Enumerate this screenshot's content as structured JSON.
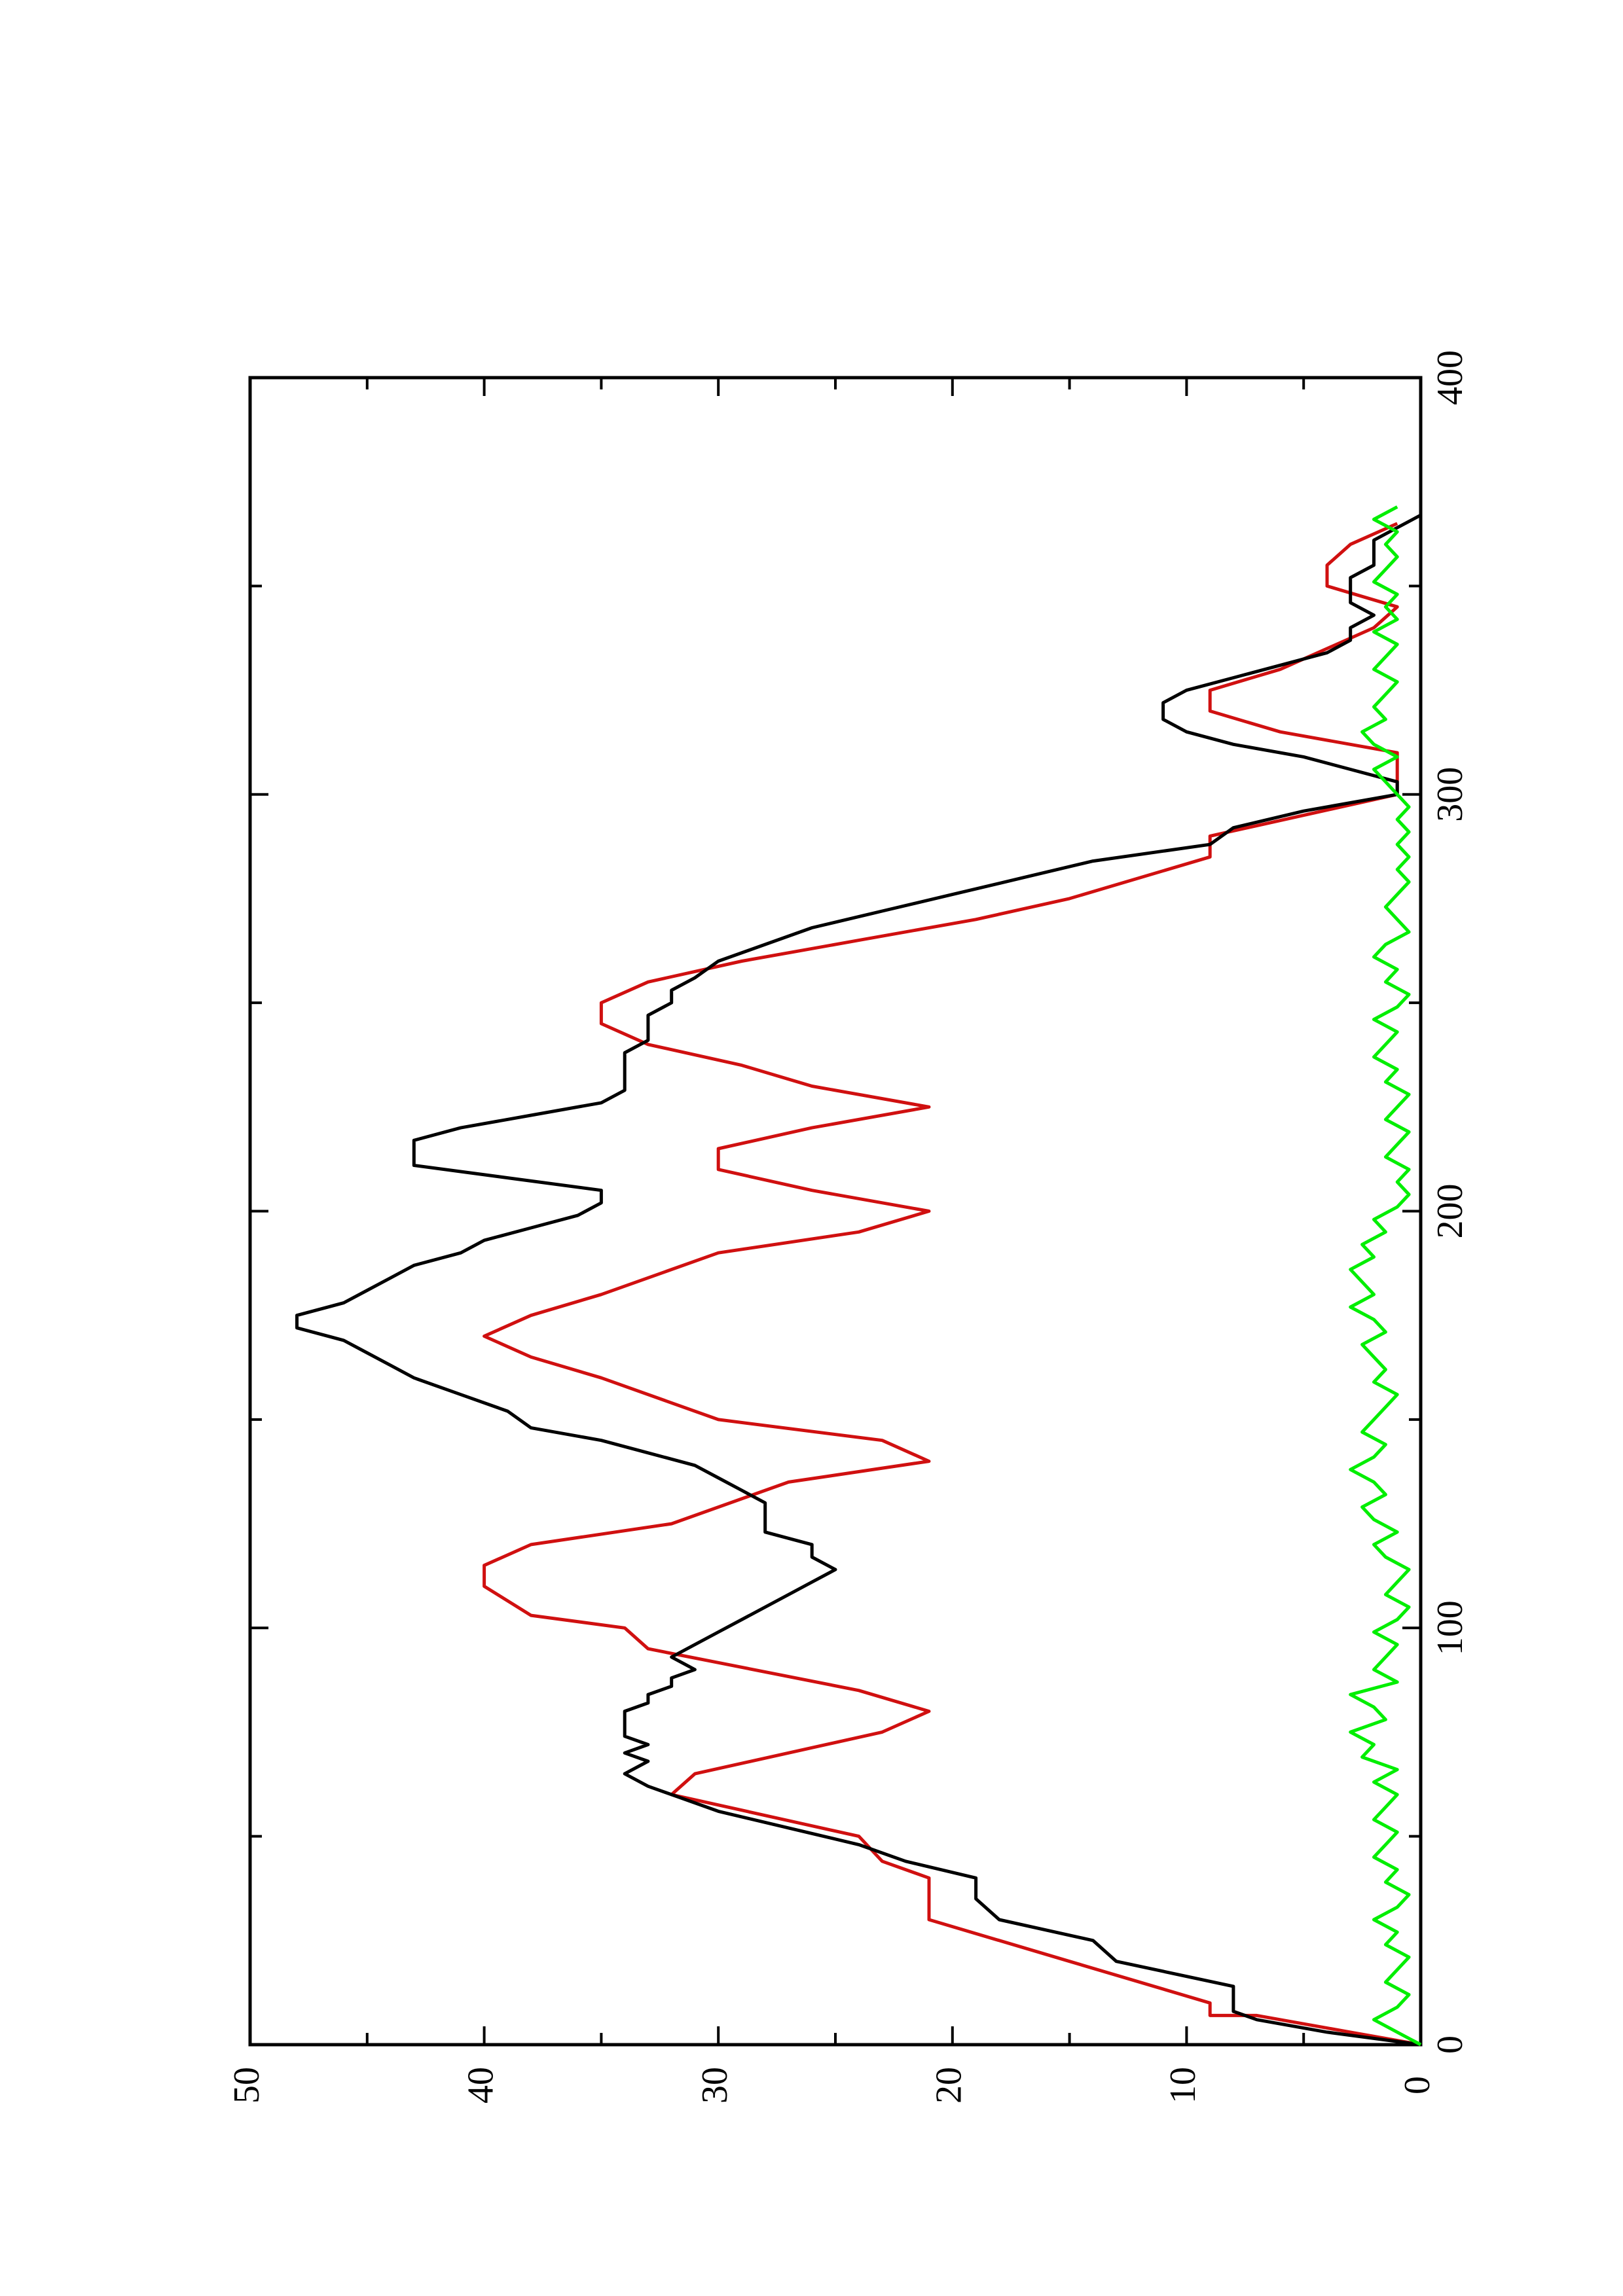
{
  "chart_data": {
    "type": "line",
    "orientation": "rotated-90-ccw",
    "title": "",
    "xlabel": "",
    "ylabel": "",
    "xlim": [
      0,
      400
    ],
    "ylim": [
      0,
      50
    ],
    "x_ticks": [
      0,
      100,
      200,
      300,
      400
    ],
    "y_ticks": [
      0,
      10,
      20,
      30,
      40,
      50
    ],
    "x_minor_ticks": [
      50,
      150,
      250,
      350
    ],
    "y_minor_ticks": [
      5,
      15,
      25,
      35,
      45
    ],
    "grid": false,
    "legend": "none",
    "series": [
      {
        "color": "#d01010",
        "x": [
          0,
          3,
          7,
          7,
          10,
          20,
          20,
          30,
          30,
          40,
          44,
          50,
          60,
          65,
          75,
          80,
          80,
          85,
          95,
          100,
          103,
          110,
          115,
          120,
          125,
          135,
          140,
          145,
          150,
          160,
          165,
          170,
          175,
          180,
          190,
          195,
          200,
          205,
          210,
          215,
          220,
          225,
          225,
          230,
          235,
          240,
          245,
          250,
          255,
          260,
          265,
          270,
          275,
          285,
          290,
          300,
          305,
          310,
          315,
          320,
          325,
          330,
          335,
          340,
          345,
          350,
          355,
          360,
          365
        ],
        "y": [
          0,
          3,
          7,
          9,
          9,
          15,
          15,
          21,
          21,
          21,
          23,
          24,
          32,
          31,
          23,
          21,
          21,
          24,
          33,
          34,
          38,
          40,
          40,
          38,
          32,
          27,
          21,
          23,
          30,
          35,
          38,
          40,
          38,
          35,
          30,
          24,
          21,
          26,
          30,
          30,
          26,
          21,
          21,
          26,
          29,
          33,
          35,
          35,
          33,
          29,
          24,
          19,
          15,
          9,
          9,
          1,
          1,
          1,
          6,
          9,
          9,
          6,
          4,
          2,
          1,
          4,
          4,
          3,
          1
        ]
      },
      {
        "color": "#000000",
        "x": [
          0,
          3,
          6,
          8,
          10,
          14,
          20,
          25,
          30,
          35,
          40,
          44,
          48,
          52,
          56,
          60,
          62,
          65,
          68,
          70,
          72,
          74,
          76,
          78,
          80,
          82,
          84,
          86,
          88,
          90,
          93,
          96,
          99,
          102,
          105,
          108,
          111,
          114,
          117,
          120,
          123,
          126,
          128,
          130,
          133,
          136,
          139,
          142,
          145,
          148,
          152,
          156,
          160,
          163,
          166,
          169,
          172,
          175,
          178,
          181,
          184,
          187,
          190,
          193,
          196,
          199,
          202,
          205,
          208,
          211,
          214,
          217,
          220,
          223,
          226,
          229,
          232,
          235,
          238,
          241,
          244,
          247,
          250,
          253,
          256,
          260,
          264,
          268,
          272,
          276,
          280,
          284,
          288,
          292,
          296,
          300,
          303,
          306,
          309,
          312,
          315,
          318,
          320,
          322,
          325,
          328,
          331,
          334,
          337,
          340,
          343,
          346,
          349,
          352,
          355,
          358,
          361,
          364,
          367
        ],
        "y": [
          0,
          4,
          7,
          8,
          8,
          8,
          13,
          14,
          18,
          19,
          19,
          22,
          24,
          27,
          30,
          32,
          33,
          34,
          33,
          34,
          33,
          34,
          34,
          34,
          34,
          33,
          33,
          32,
          32,
          31,
          32,
          31,
          30,
          29,
          28,
          27,
          26,
          25,
          26,
          26,
          28,
          28,
          28,
          28,
          29,
          30,
          31,
          33,
          35,
          38,
          39,
          41,
          43,
          44,
          45,
          46,
          48,
          48,
          46,
          45,
          44,
          43,
          41,
          40,
          38,
          36,
          35,
          35,
          39,
          43,
          43,
          43,
          41,
          38,
          35,
          34,
          34,
          34,
          34,
          33,
          33,
          33,
          32,
          32,
          31,
          30,
          28,
          26,
          23,
          20,
          17,
          14,
          9,
          8,
          5,
          1,
          1,
          3,
          5,
          8,
          10,
          11,
          11,
          11,
          10,
          8,
          6,
          4,
          3,
          3,
          2,
          3,
          3,
          3,
          2,
          2,
          2,
          1,
          0
        ]
      },
      {
        "color": "#00ee00",
        "x": [
          0,
          3,
          6,
          9,
          12,
          15,
          18,
          21,
          24,
          27,
          30,
          33,
          36,
          39,
          42,
          45,
          48,
          51,
          54,
          57,
          60,
          63,
          66,
          69,
          72,
          75,
          78,
          81,
          84,
          87,
          90,
          93,
          96,
          99,
          102,
          105,
          108,
          111,
          114,
          117,
          120,
          123,
          126,
          129,
          132,
          135,
          138,
          141,
          144,
          147,
          150,
          153,
          156,
          159,
          162,
          165,
          168,
          171,
          174,
          177,
          180,
          183,
          186,
          189,
          192,
          195,
          198,
          201,
          204,
          207,
          210,
          213,
          216,
          219,
          222,
          225,
          228,
          231,
          234,
          237,
          240,
          243,
          246,
          249,
          252,
          255,
          258,
          261,
          264,
          267,
          270,
          273,
          276,
          279,
          282,
          285,
          288,
          291,
          294,
          297,
          300,
          303,
          306,
          309,
          312,
          315,
          318,
          321,
          324,
          327,
          330,
          333,
          336,
          339,
          342,
          345,
          348,
          351,
          354,
          357,
          360,
          363,
          366,
          369
        ],
        "y": [
          0,
          1,
          2,
          1,
          0.5,
          1.5,
          1,
          0.5,
          1.5,
          1,
          2,
          1,
          0.5,
          1.5,
          1,
          2,
          1.5,
          1,
          2,
          1.5,
          1,
          2,
          1,
          2.5,
          2,
          3,
          1.5,
          2,
          3,
          1,
          2,
          1.5,
          1,
          2,
          1,
          0.5,
          1.5,
          1,
          0.5,
          1.5,
          2,
          1,
          2,
          2.5,
          1.5,
          2,
          3,
          2,
          1.5,
          2.5,
          2,
          1.5,
          1,
          2,
          1.5,
          2,
          2.5,
          1.5,
          2,
          3,
          2,
          2.5,
          3,
          2,
          2.5,
          1.5,
          2,
          1,
          0.5,
          1,
          0.5,
          1.5,
          1,
          0.5,
          1.5,
          1,
          0.5,
          1.5,
          1,
          2,
          1.5,
          1,
          2,
          1,
          0.5,
          1.5,
          1,
          2,
          1.5,
          0.5,
          1,
          1.5,
          1,
          0.5,
          1,
          0.5,
          1,
          0.5,
          1,
          0.5,
          1,
          1.5,
          2,
          1,
          2,
          2.5,
          1.5,
          2,
          1.5,
          1,
          2,
          1.5,
          1,
          2,
          1,
          1.5,
          1,
          2,
          1.5,
          1,
          1.5,
          1,
          2,
          1
        ]
      }
    ]
  }
}
